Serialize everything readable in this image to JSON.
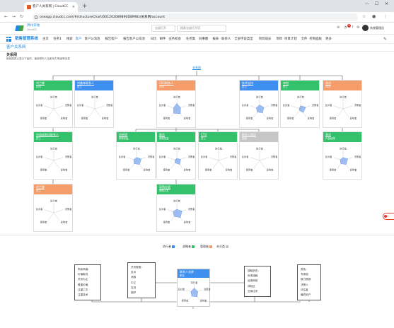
{
  "browser": {
    "tab_title": "客户人关系网 | CloudCC",
    "url": "oneapp.cloudcc.com/#/structureChart/001202089890D8MWz/关系网/account"
  },
  "header": {
    "brand": "神州云动",
    "brand_sub": "CloudCC",
    "search1_placeholder": "全部打开",
    "search2_placeholder": "搜索全部打开项",
    "badge_count": "3",
    "user_name": "系统管理员"
  },
  "menu": {
    "system_name": "销售管理系统",
    "items": [
      "主页",
      "任务1",
      "线索",
      "客户",
      "客户公海池",
      "报告客户",
      "报告客户公海池",
      "日历",
      "邮件",
      "业务机会",
      "任务集",
      "同事圈",
      "报表",
      "联系人",
      "全部字段类型",
      "项目成员",
      "项目",
      "项目计划",
      "文件",
      "控制面板",
      "更多"
    ],
    "active_index": 3
  },
  "page": {
    "title": "客户关系网",
    "section_title": "关系网",
    "section_desc": "刷新图表以显示下级的、最新联系人及影响力等级等信息"
  },
  "chart": {
    "root_label": "关系网",
    "axes": [
      "执行者",
      "决策者",
      "影响者",
      "使用者",
      "反对者"
    ],
    "cards": [
      {
        "name": "刘兰娜",
        "role": "CEO",
        "color": "green",
        "values": [
          0,
          0,
          0,
          0,
          0
        ]
      },
      {
        "name": "刘美林联系人",
        "role": "员工",
        "color": "blue",
        "values": [
          0,
          0,
          0,
          0,
          0
        ]
      },
      {
        "name": "CEO联系人",
        "role": "CEO",
        "color": "orange",
        "values": [
          0.55,
          0.4,
          0.6,
          0.55,
          0.35
        ]
      },
      {
        "name": "技术支持",
        "role": "员工",
        "color": "blue",
        "values": [
          0.4,
          0.45,
          0.5,
          0.4,
          0.35
        ]
      },
      {
        "name": "李悦",
        "role": "员工",
        "color": "green",
        "values": [
          0.3,
          0.55,
          0.45,
          0.2,
          0.15
        ]
      },
      {
        "name": "测试",
        "role": "CEO",
        "color": "orange",
        "values": [
          0,
          0,
          0,
          0,
          0
        ]
      },
      {
        "name": "市场部测试联系人",
        "role": "员工",
        "color": "green",
        "values": [
          0,
          0,
          0,
          0,
          0
        ]
      },
      {
        "name": "总经理",
        "role": "采购总监",
        "color": "green",
        "values": [
          0.3,
          0.5,
          0.5,
          0.4,
          0.3
        ]
      },
      {
        "name": "副总",
        "role": "采购总监",
        "color": "green",
        "values": [
          0.2,
          0.4,
          0.5,
          0.3,
          0.2
        ]
      },
      {
        "name": "CTO",
        "role": "员工",
        "color": "green",
        "values": [
          0,
          0,
          0,
          0,
          0
        ]
      },
      {
        "name": "联系人测试",
        "role": "经理",
        "color": "gray",
        "values": [
          0,
          0,
          0,
          0,
          0
        ]
      },
      {
        "name": "测试",
        "role": "产品经理",
        "color": "green",
        "values": [
          0.3,
          0.5,
          0.5,
          0.4,
          0.3
        ]
      },
      {
        "name": "刘兰娜",
        "role": "员工",
        "color": "orange",
        "values": [
          0,
          0,
          0,
          0,
          0
        ]
      },
      {
        "name": "采购总监",
        "role": "采购人员",
        "color": "green",
        "values": [
          0.35,
          0.55,
          0.6,
          0.45,
          0.4
        ]
      }
    ]
  },
  "legend": [
    {
      "label": "执行者",
      "color": "#3e8ff0"
    },
    {
      "label": "战略者",
      "color": "#33c26b"
    },
    {
      "label": "管理者",
      "color": "#f49d6a"
    },
    {
      "label": "未分类",
      "color": "#c6c6c6"
    }
  ],
  "structure": {
    "left_a": {
      "title": "购买风格：",
      "items": [
        "价值取向",
        "关系为主",
        "看重价格",
        "注重工艺",
        "注重技术"
      ]
    },
    "left_b": {
      "title": "关系程度：",
      "items": [
        "反对",
        "消极",
        "中立",
        "支持",
        "拥护"
      ]
    },
    "center": {
      "name": "联系人名称",
      "role": "职位",
      "axes": [
        "执行者",
        "决策者",
        "影响者",
        "使用者",
        "反对者"
      ]
    },
    "right_a": {
      "title": "接触状态：",
      "items": [
        "尚未接触",
        "运用网络",
        "体验过",
        "交易往来"
      ]
    },
    "right_b": {
      "title": "角色：",
      "items": [
        "专家组",
        "致力推销",
        "决策人",
        "评估者",
        "最终用户"
      ]
    }
  }
}
